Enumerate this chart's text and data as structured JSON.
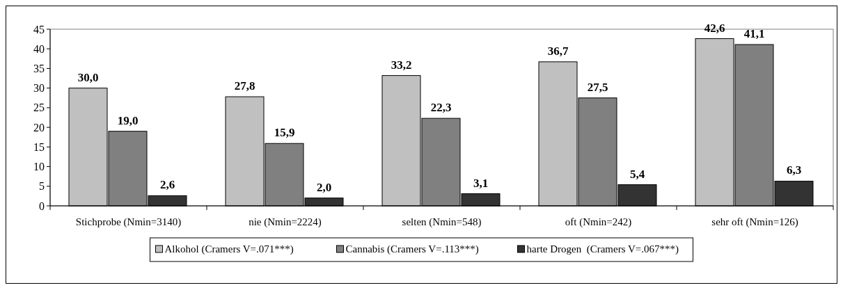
{
  "chart_data": {
    "type": "bar",
    "categories": [
      "Stichprobe (Nmin=3140)",
      "nie (Nmin=2224)",
      "selten (Nmin=548)",
      "oft (Nmin=242)",
      "sehr oft (Nmin=126)"
    ],
    "series": [
      {
        "name": "Alkohol (Cramers V=.071***)",
        "color": "#c0c0c0",
        "values": [
          30.0,
          27.8,
          33.2,
          36.7,
          42.6
        ],
        "value_labels": [
          "30,0",
          "27,8",
          "33,2",
          "36,7",
          "42,6"
        ]
      },
      {
        "name": "Cannabis (Cramers V=.113***)",
        "color": "#808080",
        "values": [
          19.0,
          15.9,
          22.3,
          27.5,
          41.1
        ],
        "value_labels": [
          "19,0",
          "15,9",
          "22,3",
          "27,5",
          "41,1"
        ]
      },
      {
        "name": "harte Drogen  (Cramers V=.067***)",
        "color": "#333333",
        "values": [
          2.6,
          2.0,
          3.1,
          5.4,
          6.3
        ],
        "value_labels": [
          "2,6",
          "2,0",
          "3,1",
          "5,4",
          "6,3"
        ]
      }
    ],
    "ylim": [
      0,
      45
    ],
    "yticks": [
      0,
      5,
      10,
      15,
      20,
      25,
      30,
      35,
      40,
      45
    ],
    "grid": false,
    "legend": "bottom"
  }
}
